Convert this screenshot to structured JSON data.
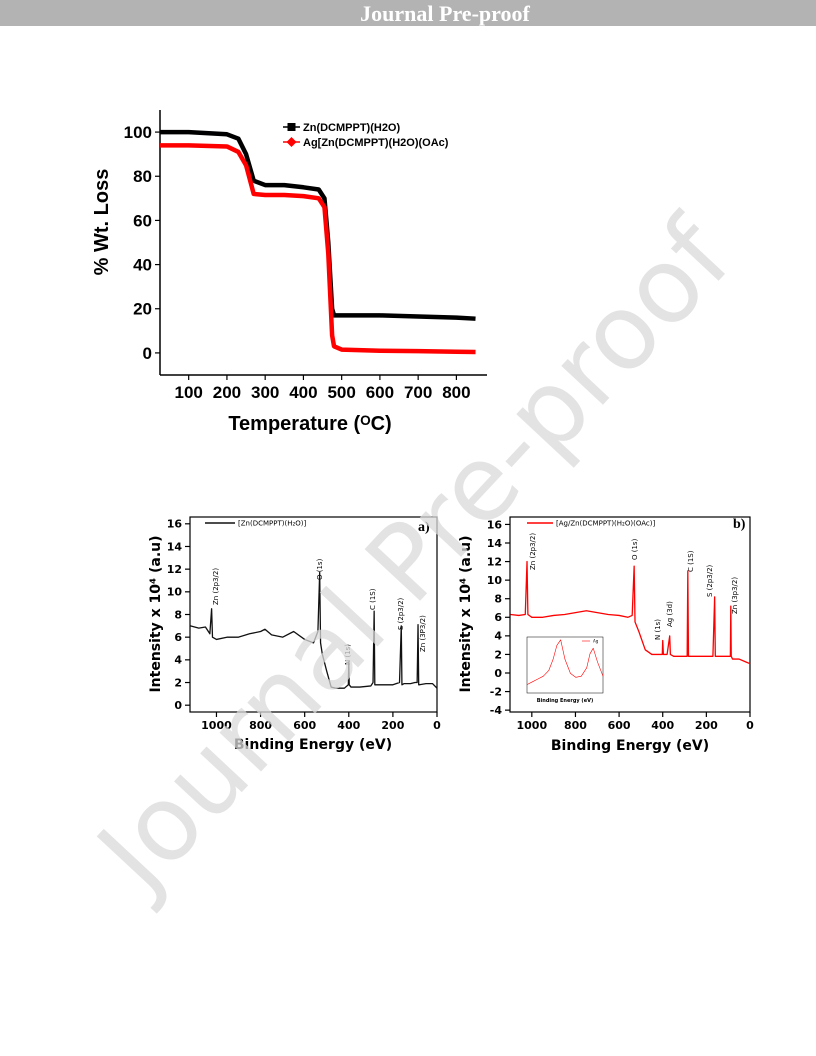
{
  "header": {
    "title": "Journal Pre-proof"
  },
  "watermark": "Journal Pre-proof",
  "chart_data": [
    {
      "type": "line",
      "x_label": "Temperature (ᴼC)",
      "y_label": "% Wt. Loss",
      "xlim": [
        25,
        880
      ],
      "ylim": [
        -10,
        110
      ],
      "xticks": [
        100,
        200,
        300,
        400,
        500,
        600,
        700,
        800
      ],
      "yticks": [
        0,
        20,
        40,
        60,
        80,
        100
      ],
      "series": [
        {
          "name": "Zn(DCMPPT)(H2O)",
          "color": "#000000",
          "marker": "square",
          "x": [
            25,
            100,
            200,
            230,
            250,
            270,
            300,
            350,
            400,
            440,
            455,
            465,
            475,
            480,
            500,
            600,
            700,
            800,
            850
          ],
          "values": [
            100,
            100,
            99,
            97,
            90,
            78,
            76,
            76,
            75,
            74,
            70,
            50,
            20,
            17,
            17,
            17,
            16.5,
            16,
            15.5
          ]
        },
        {
          "name": "Ag[Zn(DCMPPT)(H2O)(OAc)",
          "color": "#ff0000",
          "marker": "diamond",
          "x": [
            25,
            100,
            200,
            230,
            250,
            270,
            300,
            350,
            400,
            440,
            455,
            465,
            475,
            480,
            500,
            600,
            700,
            800,
            850
          ],
          "values": [
            94,
            94,
            93.5,
            91,
            85,
            72,
            71.5,
            71.5,
            71,
            70,
            66,
            45,
            8,
            3,
            1.5,
            1,
            0.8,
            0.5,
            0.4
          ]
        }
      ]
    },
    {
      "type": "line",
      "panel_label": "a)",
      "x_label": "Binding Energy (eV)",
      "y_label": "Intensity x 10⁴ (a.u)",
      "xlim": [
        1120,
        0
      ],
      "ylim": [
        -0.6,
        16.6
      ],
      "xticks": [
        1000,
        800,
        600,
        400,
        200,
        0
      ],
      "yticks": [
        0,
        2,
        4,
        6,
        8,
        10,
        12,
        14,
        16
      ],
      "annotations": [
        "Zn (2p3/2)",
        "O (1s)",
        "N (1s)",
        "C (1S)",
        "S (2p3/2)",
        "Zn (3P3/2)"
      ],
      "series": [
        {
          "name": "[Zn(DCMPPT)(H₂O)]",
          "color": "#111111",
          "x": [
            1118,
            1080,
            1050,
            1030,
            1022,
            1018,
            1000,
            950,
            900,
            850,
            800,
            780,
            750,
            700,
            650,
            600,
            560,
            540,
            532,
            528,
            520,
            500,
            480,
            460,
            420,
            402,
            400,
            398,
            390,
            350,
            300,
            290,
            285,
            282,
            250,
            200,
            170,
            162,
            159,
            150,
            120,
            100,
            90,
            86,
            83,
            80,
            50,
            20,
            0
          ],
          "values": [
            7,
            6.8,
            6.9,
            6.3,
            8.5,
            6,
            5.8,
            6,
            6,
            6.3,
            6.5,
            6.7,
            6.2,
            6,
            6.5,
            5.8,
            5.5,
            6.5,
            11.7,
            5.5,
            4.5,
            3,
            1.6,
            1.5,
            1.5,
            1.8,
            3.8,
            1.8,
            1.6,
            1.6,
            1.7,
            2,
            8.3,
            1.8,
            1.8,
            1.8,
            2,
            7,
            1.8,
            1.9,
            1.9,
            2,
            2,
            7.1,
            1.8,
            1.8,
            1.9,
            1.9,
            1.5
          ]
        }
      ]
    },
    {
      "type": "line",
      "panel_label": "b)",
      "x_label": "Binding Energy (eV)",
      "y_label": "Intensity x 10⁴ (a.u)",
      "xlim": [
        1100,
        0
      ],
      "ylim": [
        -4.2,
        16.8
      ],
      "xticks": [
        1000,
        800,
        600,
        400,
        200,
        0
      ],
      "yticks": [
        -4,
        -2,
        0,
        2,
        4,
        6,
        8,
        10,
        12,
        14,
        16
      ],
      "annotations": [
        "Zn (2p3/2)",
        "O (1s)",
        "N (1s)",
        "Ag (3d)",
        "C (1S)",
        "S (2p3/2)",
        "Zn (3p3/2)"
      ],
      "series": [
        {
          "name": "[Ag/Zn(DCMPPT)(H₂O)(OAc)]",
          "color": "#ff0000",
          "x": [
            1098,
            1060,
            1030,
            1022,
            1018,
            1000,
            950,
            900,
            850,
            800,
            750,
            700,
            650,
            600,
            560,
            540,
            531,
            527,
            510,
            480,
            450,
            430,
            402,
            400,
            397,
            380,
            368,
            365,
            350,
            300,
            288,
            285,
            282,
            250,
            200,
            170,
            162,
            159,
            150,
            120,
            100,
            90,
            88,
            86,
            80,
            50,
            20,
            0
          ],
          "values": [
            6.3,
            6.2,
            6.3,
            12,
            6.3,
            6,
            6,
            6.2,
            6.3,
            6.5,
            6.7,
            6.5,
            6.3,
            6.2,
            6,
            6.2,
            11.5,
            5.5,
            4.5,
            2.5,
            2,
            2,
            2,
            3.5,
            2,
            2,
            4,
            2,
            1.8,
            1.8,
            1.8,
            11,
            1.8,
            1.8,
            1.8,
            1.8,
            8.2,
            1.8,
            1.8,
            1.8,
            1.8,
            1.8,
            7.2,
            1.8,
            1.5,
            1.5,
            1.2,
            1
          ]
        }
      ]
    },
    {
      "type": "line",
      "x_label": "Binding Energy (eV)",
      "xlim": [
        362,
        376
      ],
      "ylim": [
        0,
        100
      ],
      "series": [
        {
          "name": "Ag",
          "color": "#ff0000",
          "x": [
            362,
            363,
            364,
            365,
            366,
            366.8,
            367.5,
            368.2,
            369,
            370,
            371,
            372,
            373,
            373.6,
            374.2,
            375,
            376
          ],
          "values": [
            15,
            20,
            25,
            30,
            40,
            60,
            85,
            95,
            60,
            35,
            28,
            30,
            45,
            70,
            80,
            55,
            30
          ]
        }
      ]
    }
  ]
}
